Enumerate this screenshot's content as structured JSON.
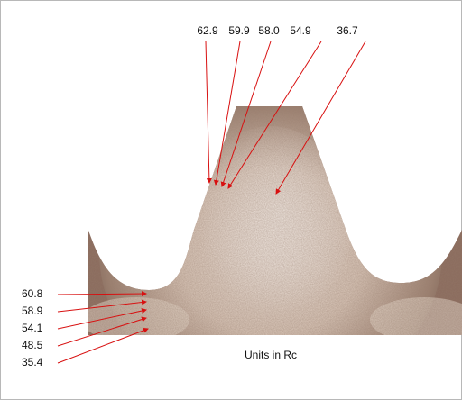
{
  "readings": {
    "top": [
      "62.9",
      "59.9",
      "58.0",
      "54.9",
      "36.7"
    ],
    "left": [
      "60.8",
      "58.9",
      "54.1",
      "48.5",
      "35.4"
    ]
  },
  "caption": "Units in Rc"
}
